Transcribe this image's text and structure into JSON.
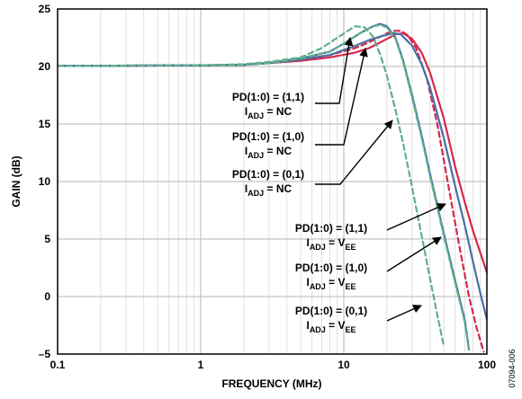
{
  "chart_data": {
    "type": "line",
    "title": "",
    "xlabel": "FREQUENCY (MHz)",
    "ylabel": "GAIN (dB)",
    "x_scale": "log",
    "xlim": [
      0.1,
      100
    ],
    "ylim": [
      -5,
      25
    ],
    "grid": true,
    "x_ticks": [
      "0.1",
      "1",
      "10",
      "100"
    ],
    "y_ticks": [
      "25",
      "20",
      "15",
      "10",
      "5",
      "0",
      "–5"
    ],
    "series": [
      {
        "color": "#d6284a",
        "style": "solid",
        "points": [
          [
            0.1,
            20.05
          ],
          [
            1,
            20.1
          ],
          [
            2,
            20.15
          ],
          [
            3,
            20.3
          ],
          [
            5,
            20.5
          ],
          [
            8,
            20.8
          ],
          [
            12,
            21.2
          ],
          [
            15,
            21.6
          ],
          [
            18,
            22.1
          ],
          [
            20,
            22.4
          ],
          [
            23,
            22.8
          ],
          [
            26,
            22.9
          ],
          [
            30,
            22.4
          ],
          [
            35,
            21.2
          ],
          [
            40,
            19.5
          ],
          [
            50,
            15.5
          ],
          [
            60,
            11.3
          ],
          [
            70,
            8.2
          ],
          [
            80,
            5.7
          ],
          [
            90,
            3.8
          ],
          [
            100,
            2.1
          ]
        ]
      },
      {
        "color": "#d6284a",
        "style": "dashed",
        "points": [
          [
            0.1,
            20.05
          ],
          [
            1,
            20.1
          ],
          [
            2,
            20.15
          ],
          [
            3,
            20.3
          ],
          [
            5,
            20.6
          ],
          [
            8,
            21.0
          ],
          [
            12,
            21.6
          ],
          [
            15,
            22.1
          ],
          [
            18,
            22.6
          ],
          [
            22,
            23.1
          ],
          [
            25,
            23.1
          ],
          [
            28,
            22.7
          ],
          [
            32,
            21.6
          ],
          [
            38,
            19.0
          ],
          [
            45,
            15.0
          ],
          [
            55,
            9.0
          ],
          [
            65,
            4.0
          ],
          [
            75,
            0.0
          ],
          [
            85,
            -2.8
          ],
          [
            95,
            -4.8
          ]
        ]
      },
      {
        "color": "#4a6fa5",
        "style": "solid",
        "points": [
          [
            0.1,
            20.05
          ],
          [
            1,
            20.1
          ],
          [
            2,
            20.15
          ],
          [
            3,
            20.3
          ],
          [
            5,
            20.6
          ],
          [
            8,
            21.0
          ],
          [
            12,
            21.8
          ],
          [
            15,
            22.3
          ],
          [
            18,
            22.6
          ],
          [
            22,
            22.9
          ],
          [
            25,
            22.8
          ],
          [
            30,
            21.8
          ],
          [
            35,
            20.2
          ],
          [
            40,
            18.2
          ],
          [
            50,
            13.8
          ],
          [
            60,
            9.6
          ],
          [
            70,
            6.2
          ],
          [
            80,
            3.0
          ],
          [
            90,
            0.3
          ],
          [
            100,
            -2.0
          ]
        ]
      },
      {
        "color": "#4a6fa5",
        "style": "solid",
        "points": [
          [
            0.1,
            20.05
          ],
          [
            1,
            20.1
          ],
          [
            2,
            20.15
          ],
          [
            3,
            20.3
          ],
          [
            5,
            20.7
          ],
          [
            8,
            21.3
          ],
          [
            10,
            22.0
          ],
          [
            13,
            22.9
          ],
          [
            16,
            23.5
          ],
          [
            18,
            23.7
          ],
          [
            20,
            23.5
          ],
          [
            23,
            22.5
          ],
          [
            26,
            20.5
          ],
          [
            30,
            17.5
          ],
          [
            35,
            14.0
          ],
          [
            40,
            10.7
          ],
          [
            50,
            5.5
          ],
          [
            60,
            1.4
          ],
          [
            70,
            -2.0
          ],
          [
            75,
            -4.6
          ]
        ]
      },
      {
        "color": "#5fb08a",
        "style": "dashed",
        "points": [
          [
            0.1,
            20.05
          ],
          [
            1,
            20.1
          ],
          [
            2,
            20.2
          ],
          [
            3,
            20.4
          ],
          [
            5,
            20.8
          ],
          [
            7,
            21.6
          ],
          [
            9,
            22.5
          ],
          [
            11,
            23.2
          ],
          [
            12,
            23.5
          ],
          [
            14,
            23.4
          ],
          [
            16,
            22.6
          ],
          [
            18,
            21.0
          ],
          [
            20,
            19.2
          ],
          [
            23,
            16.2
          ],
          [
            26,
            13.3
          ],
          [
            30,
            9.5
          ],
          [
            35,
            5.3
          ],
          [
            40,
            1.6
          ],
          [
            45,
            -1.6
          ],
          [
            50,
            -4.3
          ]
        ]
      },
      {
        "color": "#5fb08a",
        "style": "dashed",
        "points": [
          [
            0.1,
            20.05
          ],
          [
            1,
            20.1
          ],
          [
            2,
            20.15
          ],
          [
            3,
            20.3
          ],
          [
            5,
            20.7
          ],
          [
            8,
            21.3
          ],
          [
            10,
            22.0
          ],
          [
            13,
            22.9
          ],
          [
            16,
            23.5
          ],
          [
            18,
            23.6
          ],
          [
            20,
            23.4
          ],
          [
            23,
            22.4
          ],
          [
            26,
            20.4
          ],
          [
            30,
            17.3
          ],
          [
            35,
            13.8
          ],
          [
            40,
            10.5
          ],
          [
            50,
            5.3
          ],
          [
            60,
            1.2
          ],
          [
            70,
            -2.2
          ],
          [
            75,
            -4.7
          ]
        ]
      }
    ]
  },
  "annotations": [
    {
      "line1": "PD(1:0) = (1,1)",
      "main": "I",
      "sub": "ADJ",
      "tail": " = NC"
    },
    {
      "line1": "PD(1:0) = (1,0)",
      "main": "I",
      "sub": "ADJ",
      "tail": " = NC"
    },
    {
      "line1": "PD(1:0) = (0,1)",
      "main": "I",
      "sub": "ADJ",
      "tail": " = NC"
    },
    {
      "line1": "PD(1:0) = (1,1)",
      "main": "I",
      "sub": "ADJ",
      "tail": " = V",
      "sub2": "EE"
    },
    {
      "line1": "PD(1:0) = (1,0)",
      "main": "I",
      "sub": "ADJ",
      "tail": " = V",
      "sub2": "EE"
    },
    {
      "line1": "PD(1:0) = (0,1)",
      "main": "I",
      "sub": "ADJ",
      "tail": " = V",
      "sub2": "EE"
    }
  ],
  "figure_id": "07094-006"
}
